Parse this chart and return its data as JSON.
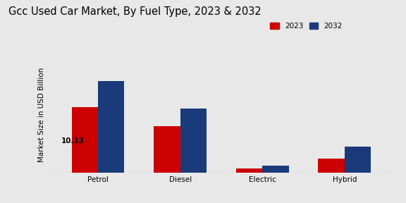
{
  "title": "Gcc Used Car Market, By Fuel Type, 2023 & 2032",
  "ylabel": "Market Size in USD Billion",
  "categories": [
    "Petrol",
    "Diesel",
    "Electric",
    "Hybrid"
  ],
  "values_2023": [
    10.13,
    7.2,
    0.65,
    2.2
  ],
  "values_2032": [
    14.2,
    10.0,
    1.05,
    4.0
  ],
  "color_2023": "#cc0000",
  "color_2032": "#1a3a7a",
  "bar_label_2023": "10.13",
  "background_color": "#e8e8e8",
  "legend_labels": [
    "2023",
    "2032"
  ],
  "bar_width": 0.32,
  "ylim": [
    0,
    18
  ],
  "title_fontsize": 10.5,
  "axis_fontsize": 7.5,
  "tick_fontsize": 7.5
}
